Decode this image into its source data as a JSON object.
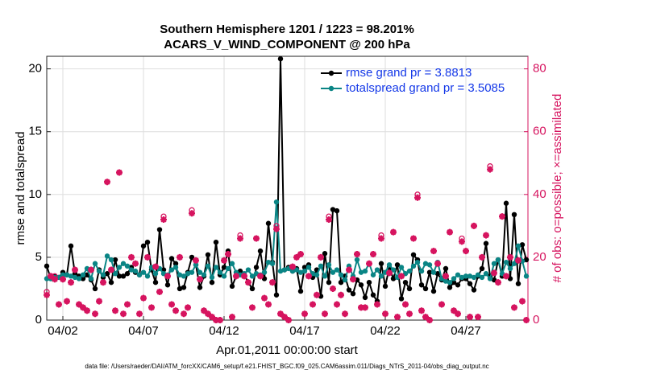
{
  "chart_data": {
    "type": "line",
    "title": "Southern Hemisphere 1201 / 1223 = 98.201%",
    "subtitle": "ACARS_V_WIND_COMPONENT @ 200 hPa",
    "x_label": "Apr.01,2011 00:00:00 start",
    "y_label": "rmse and totalspread",
    "y2_label": "# of obs: o=possible; ×=assimilated",
    "footnote": "data file: /Users/raeder/DAI/ATM_forcXX/CAM6_setup/f.e21.FHIST_BGC.f09_025.CAM6assim.011/Diags_NTrS_2011-04/obs_diag_output.nc",
    "grid": true,
    "legend": "upper right",
    "xlim": [
      0,
      29.85
    ],
    "xticks": [
      {
        "value": 1,
        "label": "04/02"
      },
      {
        "value": 6,
        "label": "04/07"
      },
      {
        "value": 11,
        "label": "04/12"
      },
      {
        "value": 16,
        "label": "04/17"
      },
      {
        "value": 21,
        "label": "04/22"
      },
      {
        "value": 26,
        "label": "04/27"
      }
    ],
    "ylim": [
      0,
      21
    ],
    "yticks": [
      0,
      5,
      10,
      15,
      20
    ],
    "y2lim": [
      0,
      84
    ],
    "y2ticks": [
      0,
      20,
      40,
      60,
      80
    ],
    "x": [
      0,
      0.25,
      0.5,
      0.75,
      1,
      1.25,
      1.5,
      1.75,
      2,
      2.25,
      2.5,
      2.75,
      3,
      3.25,
      3.5,
      3.75,
      4,
      4.25,
      4.5,
      4.75,
      5,
      5.25,
      5.5,
      5.75,
      6,
      6.25,
      6.5,
      6.75,
      7,
      7.25,
      7.5,
      7.75,
      8,
      8.25,
      8.5,
      8.75,
      9,
      9.25,
      9.5,
      9.75,
      10,
      10.25,
      10.5,
      10.75,
      11,
      11.25,
      11.5,
      11.75,
      12,
      12.25,
      12.5,
      12.75,
      13,
      13.25,
      13.5,
      13.75,
      14,
      14.25,
      14.5,
      14.75,
      15,
      15.25,
      15.5,
      15.75,
      16,
      16.25,
      16.5,
      16.75,
      17,
      17.25,
      17.5,
      17.75,
      18,
      18.25,
      18.5,
      18.75,
      19,
      19.25,
      19.5,
      19.75,
      20,
      20.25,
      20.5,
      20.75,
      21,
      21.25,
      21.5,
      21.75,
      22,
      22.25,
      22.5,
      22.75,
      23,
      23.25,
      23.5,
      23.75,
      24,
      24.25,
      24.5,
      24.75,
      25,
      25.25,
      25.5,
      25.75,
      26,
      26.25,
      26.5,
      26.75,
      27,
      27.25,
      27.5,
      27.75,
      28,
      28.25,
      28.5,
      28.75,
      29,
      29.25,
      29.5,
      29.75
    ],
    "series": [
      {
        "name": "rmse grand pr = 3.8813",
        "color": "#000000",
        "marker": "dot",
        "values": [
          4.3,
          3.3,
          3.5,
          3.4,
          3.8,
          3.6,
          5.9,
          3.7,
          3.5,
          3.3,
          3.6,
          3.2,
          2.5,
          4.0,
          3.4,
          3.7,
          3.0,
          4.8,
          3.5,
          3.5,
          3.7,
          4.2,
          3.8,
          3.6,
          5.9,
          6.2,
          4.0,
          3.0,
          7.2,
          4.0,
          2.8,
          4.9,
          4.5,
          2.5,
          2.6,
          3.8,
          5.0,
          4.4,
          2.6,
          3.5,
          5.2,
          3.0,
          6.2,
          3.6,
          4.2,
          5.5,
          2.7,
          3.5,
          3.9,
          3.6,
          3.0,
          2.5,
          4.2,
          5.5,
          3.3,
          7.7,
          4.6,
          2.0,
          20.8,
          4.0,
          4.2,
          3.9,
          4.1,
          2.3,
          4.2,
          4.4,
          3.4,
          4.0,
          1.9,
          5.3,
          3.0,
          8.8,
          8.7,
          3.0,
          3.5,
          2.4,
          2.1,
          3.2,
          2.8,
          1.8,
          3.0,
          2.0,
          1.5,
          4.5,
          2.7,
          4.2,
          3.3,
          4.4,
          1.7,
          3.0,
          2.5,
          5.2,
          4.8,
          2.8,
          2.5,
          3.8,
          2.3,
          3.7,
          3.2,
          4.1,
          2.6,
          3.0,
          2.8,
          3.3,
          3.3,
          2.9,
          2.4,
          3.5,
          4.1,
          6.1,
          3.5,
          3.2,
          4.8,
          3.5,
          9.3,
          3.3,
          8.4,
          2.9,
          6.0,
          4.8
        ]
      },
      {
        "name": "totalspread grand pr = 3.5085",
        "color": "#0a8585",
        "marker": "dot",
        "values": [
          3.3,
          3.3,
          3.4,
          3.4,
          3.6,
          3.6,
          3.5,
          3.4,
          3.3,
          3.6,
          4.1,
          3.3,
          4.5,
          3.9,
          3.6,
          5.1,
          4.8,
          3.7,
          4.2,
          4.5,
          4.3,
          4.0,
          3.9,
          3.6,
          3.8,
          3.5,
          4.2,
          3.7,
          4.1,
          3.7,
          3.6,
          4.0,
          4.2,
          3.6,
          3.5,
          3.7,
          3.8,
          4.4,
          3.8,
          3.6,
          4.3,
          3.4,
          4.2,
          3.8,
          3.5,
          4.1,
          4.5,
          3.8,
          3.6,
          3.7,
          4.0,
          3.5,
          3.7,
          3.6,
          3.8,
          4.6,
          4.5,
          9.4,
          3.9,
          4.0,
          4.1,
          3.9,
          4.0,
          3.8,
          3.9,
          4.2,
          3.7,
          3.6,
          4.3,
          3.5,
          4.4,
          3.8,
          4.0,
          3.6,
          3.2,
          4.3,
          3.5,
          4.8,
          3.8,
          3.9,
          4.5,
          3.6,
          4.0,
          3.5,
          3.8,
          4.4,
          4.0,
          3.4,
          4.2,
          3.7,
          3.9,
          4.3,
          4.6,
          3.9,
          4.5,
          4.4,
          3.8,
          4.6,
          3.3,
          3.1,
          3.0,
          3.3,
          3.6,
          3.4,
          3.5,
          3.5,
          3.4,
          3.6,
          3.4,
          3.7,
          3.3,
          4.5,
          4.8,
          3.7,
          4.6,
          4.1,
          4.5,
          5.9,
          4.7,
          3.5
        ]
      },
      {
        "name": "possible",
        "color": "#d6145f",
        "marker": "circle",
        "axis": "y2",
        "values": [
          9,
          14,
          14,
          5,
          13,
          6,
          12,
          16,
          5,
          4,
          3,
          16,
          2,
          6,
          12,
          44,
          16,
          3,
          47,
          2,
          5,
          20,
          18,
          2,
          7,
          20,
          4,
          17,
          9,
          33,
          14,
          5,
          3,
          20,
          2,
          4,
          35,
          19,
          13,
          3,
          2,
          1,
          0,
          0,
          19,
          21,
          1,
          14,
          27,
          14,
          12,
          4,
          26,
          14,
          7,
          5,
          12,
          30,
          2,
          1,
          0,
          17,
          20,
          21,
          2,
          14,
          5,
          8,
          20,
          2,
          33,
          10,
          5,
          8,
          2,
          16,
          13,
          21,
          4,
          4,
          18,
          21,
          5,
          27,
          2,
          15,
          28,
          1,
          14,
          5,
          2,
          26,
          40,
          3,
          1,
          0,
          22,
          18,
          5,
          14,
          28,
          3,
          2,
          26,
          22,
          1,
          30,
          1,
          20,
          27,
          49,
          15,
          12,
          33,
          14,
          20,
          4,
          19,
          6,
          0
        ]
      },
      {
        "name": "assimilated",
        "color": "#d6145f",
        "marker": "star",
        "axis": "y2",
        "values": [
          8,
          14,
          13,
          5,
          13,
          6,
          12,
          16,
          5,
          4,
          3,
          16,
          2,
          6,
          12,
          44,
          16,
          3,
          47,
          2,
          5,
          20,
          18,
          2,
          7,
          20,
          4,
          17,
          9,
          32,
          14,
          5,
          3,
          20,
          2,
          4,
          34,
          19,
          13,
          3,
          2,
          1,
          0,
          0,
          19,
          21,
          1,
          14,
          26,
          14,
          12,
          4,
          26,
          14,
          7,
          5,
          12,
          29,
          2,
          1,
          0,
          17,
          20,
          21,
          2,
          14,
          5,
          8,
          20,
          2,
          32,
          10,
          5,
          8,
          2,
          16,
          13,
          21,
          4,
          4,
          18,
          21,
          5,
          26,
          2,
          15,
          28,
          1,
          14,
          5,
          2,
          26,
          39,
          3,
          1,
          0,
          22,
          18,
          5,
          14,
          28,
          3,
          2,
          25,
          22,
          1,
          30,
          1,
          20,
          27,
          48,
          15,
          12,
          33,
          14,
          20,
          4,
          19,
          6,
          0
        ]
      }
    ]
  }
}
